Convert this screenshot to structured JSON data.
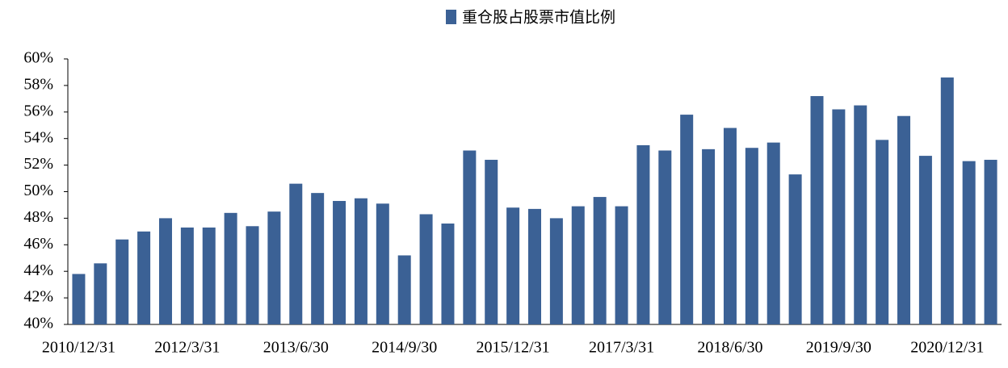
{
  "chart_data": {
    "type": "bar",
    "categories": [
      "2010/12/31",
      null,
      null,
      null,
      null,
      "2012/3/31",
      null,
      null,
      null,
      null,
      "2013/6/30",
      null,
      null,
      null,
      null,
      "2014/9/30",
      null,
      null,
      null,
      null,
      "2015/12/31",
      null,
      null,
      null,
      null,
      "2017/3/31",
      null,
      null,
      null,
      null,
      "2018/6/30",
      null,
      null,
      null,
      null,
      "2019/9/30",
      null,
      null,
      null,
      null,
      "2020/12/31",
      null,
      null
    ],
    "series": [
      {
        "name": "重仓股占股票市值比例",
        "color": "#3b6195",
        "values": [
          43.8,
          44.6,
          46.4,
          47.0,
          48.0,
          47.3,
          47.3,
          48.4,
          47.4,
          48.5,
          50.6,
          49.9,
          49.3,
          49.5,
          49.1,
          45.2,
          48.3,
          47.6,
          53.1,
          52.4,
          48.8,
          48.7,
          48.0,
          48.9,
          49.6,
          48.9,
          53.5,
          53.1,
          55.8,
          53.2,
          54.8,
          53.3,
          53.7,
          51.3,
          57.2,
          56.2,
          56.5,
          53.9,
          55.7,
          52.7,
          58.6,
          52.3,
          52.4
        ]
      }
    ],
    "ylim": [
      40,
      60
    ],
    "yticks": [
      {
        "value": 40,
        "label": "40%"
      },
      {
        "value": 42,
        "label": "42%"
      },
      {
        "value": 44,
        "label": "44%"
      },
      {
        "value": 46,
        "label": "46%"
      },
      {
        "value": 48,
        "label": "48%"
      },
      {
        "value": 50,
        "label": "50%"
      },
      {
        "value": 52,
        "label": "52%"
      },
      {
        "value": 54,
        "label": "54%"
      },
      {
        "value": 56,
        "label": "56%"
      },
      {
        "value": 58,
        "label": "58%"
      },
      {
        "value": 60,
        "label": "60%"
      }
    ],
    "legend": "top"
  }
}
